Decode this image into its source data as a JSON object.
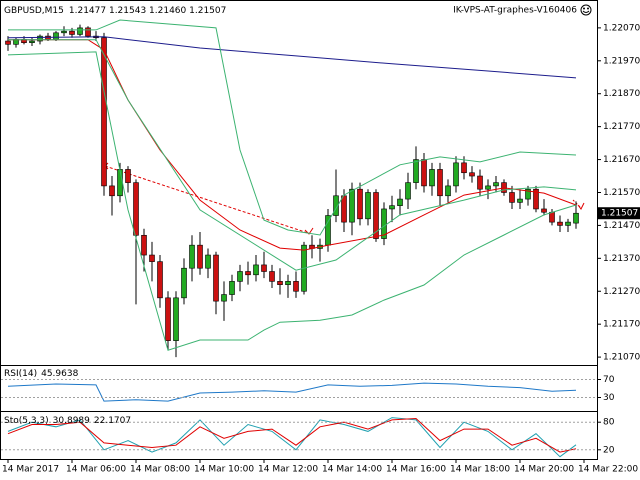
{
  "chart_data": [
    {
      "type": "candlestick",
      "title": "GBPUSD,M15",
      "quote": "1.21477 1.21543 1.21460 1.21507",
      "right_label": "IK-VPS-AT-graphes-V160406",
      "ylim": [
        1.21046,
        1.221
      ],
      "yticks": [
        {
          "value": 1.2207,
          "label": "1.22070"
        },
        {
          "value": 1.2197,
          "label": "1.21970"
        },
        {
          "value": 1.2187,
          "label": "1.21870"
        },
        {
          "value": 1.2177,
          "label": "1.21770"
        },
        {
          "value": 1.2167,
          "label": "1.21670"
        },
        {
          "value": 1.2157,
          "label": "1.21570"
        },
        {
          "value": 1.2147,
          "label": "1.21470"
        },
        {
          "value": 1.2137,
          "label": "1.21370"
        },
        {
          "value": 1.2127,
          "label": "1.21270"
        },
        {
          "value": 1.2117,
          "label": "1.21170"
        },
        {
          "value": 1.2107,
          "label": "1.21070"
        }
      ],
      "xlim": [
        0,
        72
      ],
      "xticks": [
        {
          "value": 0,
          "label": "14 Mar 2017"
        },
        {
          "value": 8,
          "label": "14 Mar 06:00"
        },
        {
          "value": 16,
          "label": "14 Mar 08:00"
        },
        {
          "value": 24,
          "label": "14 Mar 10:00"
        },
        {
          "value": 32,
          "label": "14 Mar 12:00"
        },
        {
          "value": 40,
          "label": "14 Mar 14:00"
        },
        {
          "value": 48,
          "label": "14 Mar 16:00"
        },
        {
          "value": 56,
          "label": "14 Mar 18:00"
        },
        {
          "value": 64,
          "label": "14 Mar 20:00"
        },
        {
          "value": 72,
          "label": "14 Mar 22:00"
        }
      ],
      "grid": false,
      "up_color": "#22aa22",
      "down_color": "#cc1111",
      "candles": [
        [
          1.2203,
          1.22045,
          1.22,
          1.2202
        ],
        [
          1.2202,
          1.2204,
          1.2201,
          1.22035
        ],
        [
          1.22035,
          1.22045,
          1.2202,
          1.22025
        ],
        [
          1.22025,
          1.2204,
          1.22015,
          1.2203
        ],
        [
          1.2203,
          1.2205,
          1.2202,
          1.22045
        ],
        [
          1.22045,
          1.22055,
          1.2203,
          1.22035
        ],
        [
          1.22035,
          1.2206,
          1.2203,
          1.22055
        ],
        [
          1.22055,
          1.22075,
          1.22045,
          1.2206
        ],
        [
          1.2206,
          1.2207,
          1.2204,
          1.2205
        ],
        [
          1.2205,
          1.2208,
          1.22045,
          1.2207
        ],
        [
          1.2207,
          1.22075,
          1.2204,
          1.22045
        ],
        [
          1.22045,
          1.2206,
          1.2203,
          1.2204
        ],
        [
          1.2204,
          1.22055,
          1.2156,
          1.2159
        ],
        [
          1.2159,
          1.2162,
          1.215,
          1.2156
        ],
        [
          1.2156,
          1.2166,
          1.2154,
          1.2164
        ],
        [
          1.2164,
          1.2165,
          1.2157,
          1.216
        ],
        [
          1.216,
          1.2161,
          1.2123,
          1.2144
        ],
        [
          1.2144,
          1.2146,
          1.2133,
          1.2138
        ],
        [
          1.2138,
          1.2142,
          1.213,
          1.2136
        ],
        [
          1.2136,
          1.2138,
          1.2122,
          1.2125
        ],
        [
          1.2125,
          1.2127,
          1.2109,
          1.2112
        ],
        [
          1.2112,
          1.2127,
          1.2107,
          1.2125
        ],
        [
          1.2125,
          1.2137,
          1.2123,
          1.2134
        ],
        [
          1.2134,
          1.2144,
          1.213,
          1.2141
        ],
        [
          1.2141,
          1.2145,
          1.2132,
          1.2134
        ],
        [
          1.2134,
          1.214,
          1.2131,
          1.2138
        ],
        [
          1.2138,
          1.2139,
          1.212,
          1.2124
        ],
        [
          1.2124,
          1.213,
          1.2118,
          1.2126
        ],
        [
          1.2126,
          1.2132,
          1.2124,
          1.213
        ],
        [
          1.213,
          1.2135,
          1.2127,
          1.2133
        ],
        [
          1.2133,
          1.2136,
          1.2129,
          1.2132
        ],
        [
          1.2132,
          1.2138,
          1.213,
          1.2135
        ],
        [
          1.2135,
          1.2139,
          1.2131,
          1.2133
        ],
        [
          1.2133,
          1.2135,
          1.2128,
          1.213
        ],
        [
          1.213,
          1.2134,
          1.2126,
          1.2129
        ],
        [
          1.2129,
          1.2132,
          1.2125,
          1.213
        ],
        [
          1.213,
          1.2133,
          1.2125,
          1.2127
        ],
        [
          1.2127,
          1.2142,
          1.2126,
          1.2141
        ],
        [
          1.2141,
          1.2144,
          1.2137,
          1.214
        ],
        [
          1.214,
          1.2143,
          1.2136,
          1.2141
        ],
        [
          1.2141,
          1.2152,
          1.2139,
          1.215
        ],
        [
          1.215,
          1.2164,
          1.2148,
          1.2156
        ],
        [
          1.2156,
          1.2158,
          1.2145,
          1.2148
        ],
        [
          1.2148,
          1.216,
          1.2144,
          1.2158
        ],
        [
          1.2158,
          1.216,
          1.2147,
          1.2149
        ],
        [
          1.2149,
          1.2158,
          1.2147,
          1.2157
        ],
        [
          1.2157,
          1.2158,
          1.2142,
          1.2143
        ],
        [
          1.2143,
          1.2154,
          1.2141,
          1.2152
        ],
        [
          1.2152,
          1.2156,
          1.2148,
          1.2153
        ],
        [
          1.2153,
          1.2158,
          1.215,
          1.2155
        ],
        [
          1.2155,
          1.2163,
          1.2152,
          1.216
        ],
        [
          1.216,
          1.2171,
          1.2158,
          1.2167
        ],
        [
          1.2167,
          1.2169,
          1.2157,
          1.2159
        ],
        [
          1.2159,
          1.2166,
          1.2156,
          1.2164
        ],
        [
          1.2164,
          1.2166,
          1.2153,
          1.2156
        ],
        [
          1.2156,
          1.2161,
          1.2154,
          1.2159
        ],
        [
          1.2159,
          1.2168,
          1.2157,
          1.2166
        ],
        [
          1.2166,
          1.2168,
          1.2161,
          1.2163
        ],
        [
          1.2163,
          1.2165,
          1.216,
          1.2162
        ],
        [
          1.2162,
          1.2164,
          1.2156,
          1.2158
        ],
        [
          1.2158,
          1.2161,
          1.2155,
          1.2159
        ],
        [
          1.2159,
          1.2162,
          1.2157,
          1.216
        ],
        [
          1.216,
          1.2161,
          1.2156,
          1.2157
        ],
        [
          1.2157,
          1.2159,
          1.2152,
          1.2154
        ],
        [
          1.2154,
          1.2158,
          1.2152,
          1.2155
        ],
        [
          1.2155,
          1.2159,
          1.2153,
          1.2158
        ],
        [
          1.2158,
          1.2159,
          1.2151,
          1.2152
        ],
        [
          1.2152,
          1.2155,
          1.215,
          1.2151
        ],
        [
          1.2151,
          1.2152,
          1.2147,
          1.2148
        ],
        [
          1.2148,
          1.215,
          1.2145,
          1.2147
        ],
        [
          1.2147,
          1.2149,
          1.2145,
          1.2148
        ],
        [
          1.21477,
          1.21543,
          1.2146,
          1.21507
        ]
      ],
      "series": [
        {
          "color": "#1c1c8c",
          "x": [
            0,
            12,
            24,
            36,
            48,
            60,
            71
          ],
          "values": [
            1.2204,
            1.22043,
            1.22009,
            1.21985,
            1.21961,
            1.21939,
            1.21918
          ]
        },
        {
          "color": "#e00000",
          "x": [
            0,
            10,
            12,
            15,
            19,
            24,
            29,
            34,
            37,
            40,
            47,
            52,
            57,
            62,
            67,
            71
          ],
          "values": [
            1.22034,
            1.22034,
            1.22003,
            1.21851,
            1.21699,
            1.21547,
            1.21456,
            1.21401,
            1.21395,
            1.2141,
            1.21441,
            1.21502,
            1.21562,
            1.21584,
            1.21568,
            1.21532
          ]
        },
        {
          "color": "#3cb371",
          "x": [
            0,
            11,
            14,
            26,
            29,
            32,
            35,
            39,
            42,
            49,
            54,
            59,
            64,
            71
          ],
          "values": [
            1.22064,
            1.22064,
            1.22094,
            1.2207,
            1.21699,
            1.21486,
            1.21456,
            1.21441,
            1.21562,
            1.21654,
            1.21678,
            1.21663,
            1.21693,
            1.21684
          ]
        },
        {
          "color": "#3cb371",
          "x": [
            0,
            11,
            15,
            24,
            36,
            41,
            49,
            57,
            62,
            67,
            71
          ],
          "values": [
            1.22034,
            1.22034,
            1.21851,
            1.21517,
            1.21334,
            1.21365,
            1.21502,
            1.21547,
            1.21578,
            1.21587,
            1.21578
          ]
        },
        {
          "color": "#3cb371",
          "x": [
            0,
            11,
            15,
            20,
            24,
            30,
            32,
            34,
            39,
            43,
            47,
            52,
            57,
            62,
            67,
            71
          ],
          "values": [
            1.21988,
            1.21997,
            1.21517,
            1.21091,
            1.21122,
            1.21122,
            1.21152,
            1.21176,
            1.21182,
            1.21198,
            1.21243,
            1.21289,
            1.2138,
            1.21441,
            1.21502,
            1.21532
          ]
        }
      ]
    },
    {
      "type": "line",
      "title": "RSI(14)",
      "ylim": [
        0,
        100
      ],
      "yticks": [
        70,
        30
      ],
      "grid": true,
      "series": [
        {
          "color": "#1e78c8",
          "x": [
            0,
            6,
            11,
            12,
            16,
            20,
            24,
            28,
            32,
            36,
            40,
            44,
            48,
            52,
            56,
            60,
            64,
            68,
            71
          ],
          "values": [
            55,
            60,
            58,
            22,
            25,
            22,
            40,
            42,
            45,
            42,
            58,
            55,
            57,
            62,
            60,
            55,
            52,
            44,
            45.9638
          ]
        }
      ]
    },
    {
      "type": "line",
      "title": "Sto(5,3,3)",
      "ylim": [
        0,
        100
      ],
      "yticks": [
        80,
        20
      ],
      "grid": true,
      "series": [
        {
          "color": "#20a0b0",
          "x": [
            0,
            3,
            6,
            9,
            12,
            15,
            18,
            21,
            24,
            27,
            30,
            33,
            36,
            39,
            42,
            45,
            48,
            51,
            54,
            57,
            60,
            63,
            66,
            69,
            71
          ],
          "values": [
            60,
            80,
            70,
            85,
            20,
            40,
            15,
            35,
            85,
            30,
            75,
            60,
            20,
            85,
            75,
            60,
            90,
            85,
            25,
            80,
            60,
            20,
            55,
            5,
            30.8989
          ]
        },
        {
          "color": "#e00000",
          "x": [
            0,
            3,
            6,
            9,
            12,
            15,
            18,
            21,
            24,
            27,
            30,
            33,
            36,
            39,
            42,
            45,
            48,
            51,
            54,
            57,
            60,
            63,
            66,
            69,
            71
          ],
          "values": [
            55,
            75,
            75,
            80,
            35,
            30,
            25,
            30,
            70,
            45,
            60,
            65,
            30,
            70,
            80,
            65,
            85,
            88,
            40,
            65,
            65,
            30,
            45,
            15,
            22.1707
          ]
        }
      ]
    }
  ]
}
